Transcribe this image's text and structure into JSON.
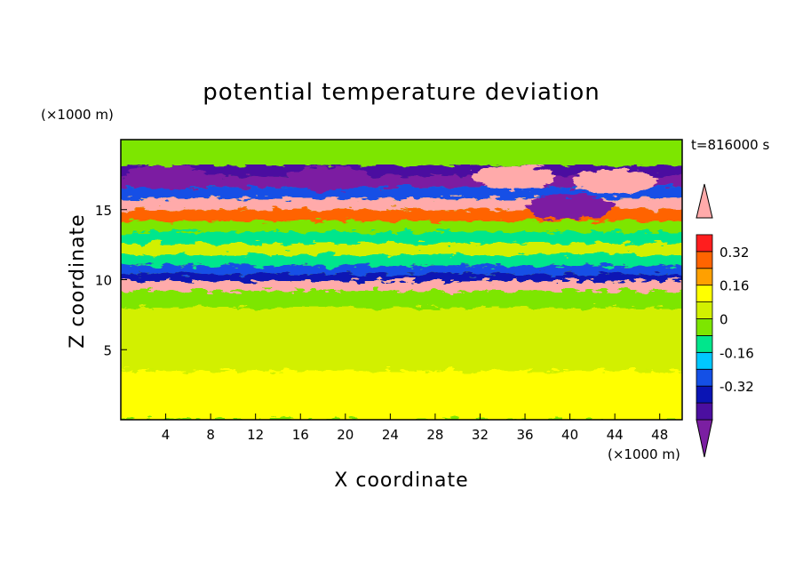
{
  "chart_data": {
    "type": "heatmap",
    "title": "potential temperature deviation",
    "xlabel": "X coordinate",
    "ylabel": "Z coordinate",
    "x_unit": "(×1000 m)",
    "y_unit": "(×1000 m)",
    "time_label": "t=816000 s",
    "xlim": [
      0,
      50
    ],
    "ylim": [
      0,
      20
    ],
    "x_ticks": [
      4,
      8,
      12,
      16,
      20,
      24,
      28,
      32,
      36,
      40,
      44,
      48
    ],
    "y_ticks": [
      5,
      10,
      15
    ],
    "colorbar": {
      "levels": [
        -0.48,
        -0.4,
        -0.32,
        -0.24,
        -0.16,
        -0.08,
        0,
        0.08,
        0.16,
        0.24,
        0.32,
        0.4,
        0.48
      ],
      "tick_labels": [
        "-0.32",
        "-0.16",
        "0",
        "0.16",
        "0.32"
      ],
      "tick_values": [
        -0.32,
        -0.16,
        0,
        0.16,
        0.32
      ],
      "colors": [
        "#7b1fa2",
        "#4b0fa0",
        "#0a14b4",
        "#1450e6",
        "#00c8ff",
        "#00e68c",
        "#7de600",
        "#d2f000",
        "#ffff00",
        "#ffa000",
        "#ff6400",
        "#ff1e1e",
        "#ffaaaa"
      ],
      "extend": "both"
    },
    "bands": [
      {
        "z": [
          17.4,
          18.2
        ],
        "value": -0.36
      },
      {
        "z": [
          16.6,
          17.4
        ],
        "value": -0.45
      },
      {
        "z": [
          15.8,
          16.6
        ],
        "value": -0.2
      },
      {
        "z": [
          15.0,
          15.8
        ],
        "value": 0.45
      },
      {
        "z": [
          14.2,
          15.0
        ],
        "value": 0.35
      },
      {
        "z": [
          13.4,
          14.2
        ],
        "value": 0.03
      },
      {
        "z": [
          12.6,
          13.4
        ],
        "value": -0.05
      },
      {
        "z": [
          11.8,
          12.6
        ],
        "value": 0.05
      },
      {
        "z": [
          11.0,
          11.8
        ],
        "value": -0.1
      },
      {
        "z": [
          10.4,
          11.0
        ],
        "value": -0.2
      },
      {
        "z": [
          9.9,
          10.4
        ],
        "value": -0.35
      },
      {
        "z": [
          9.2,
          9.9
        ],
        "value": 0.45
      },
      {
        "z": [
          8.0,
          9.2
        ],
        "value": 0.02
      },
      {
        "z": [
          3.5,
          8.0
        ],
        "value": 0.06
      },
      {
        "z": [
          0.0,
          3.5
        ],
        "value": 0.2
      }
    ],
    "features": [
      {
        "type": "warm",
        "x": 35,
        "z": 17.3,
        "value": 0.45
      },
      {
        "type": "warm",
        "x": 44,
        "z": 17.0,
        "value": 0.45
      },
      {
        "type": "cold",
        "x": 18.5,
        "z": 17.2,
        "value": -0.45
      },
      {
        "type": "cold",
        "x": 4,
        "z": 17.3,
        "value": -0.45
      },
      {
        "type": "cold",
        "x": 40,
        "z": 15.2,
        "value": -0.45
      }
    ]
  }
}
